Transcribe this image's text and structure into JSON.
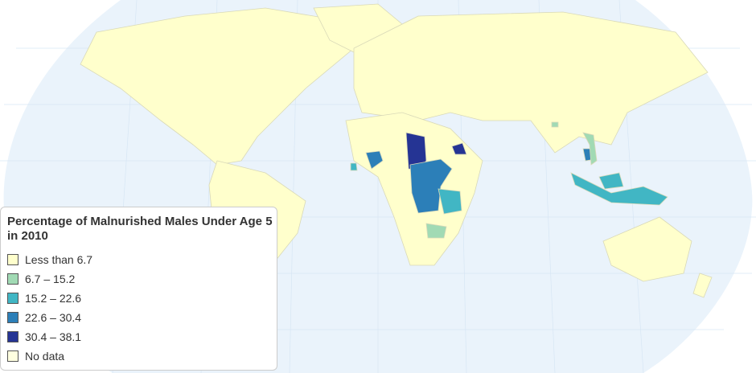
{
  "legend": {
    "title": "Percentage of Malnurished Males Under Age 5 in 2010",
    "items": [
      {
        "label": "Less than 6.7",
        "color": "#ffffcc"
      },
      {
        "label": "6.7 – 15.2",
        "color": "#a1dab4"
      },
      {
        "label": "15.2 – 22.6",
        "color": "#41b6c4"
      },
      {
        "label": "22.6 – 30.4",
        "color": "#2c7fb8"
      },
      {
        "label": "30.4 – 38.1",
        "color": "#253494"
      },
      {
        "label": "No data",
        "color": "#ffffe0"
      }
    ]
  }
}
